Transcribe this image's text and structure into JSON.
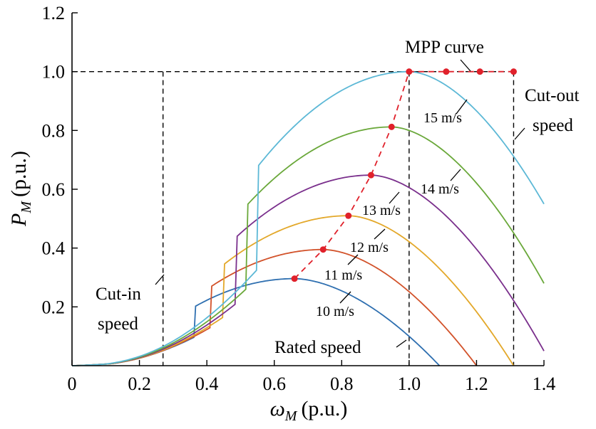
{
  "chart_data": {
    "type": "line",
    "xlabel": {
      "symbol": "ω",
      "subscript": "M",
      "unit": "(p.u.)"
    },
    "ylabel": {
      "symbol": "P",
      "subscript": "M",
      "unit": "(p.u.)"
    },
    "xlim": [
      0,
      1.4
    ],
    "ylim": [
      0,
      1.2
    ],
    "x_ticks": [
      0,
      0.2,
      0.4,
      0.6,
      0.8,
      1.0,
      1.2,
      1.4
    ],
    "x_tick_labels": [
      "0",
      "0.2",
      "0.4",
      "0.6",
      "0.8",
      "1.0",
      "1.2",
      "1.4"
    ],
    "y_ticks": [
      0.2,
      0.4,
      0.6,
      0.8,
      1.0,
      1.2
    ],
    "y_tick_labels": [
      "0.2",
      "0.4",
      "0.6",
      "0.8",
      "1.0",
      "1.2"
    ],
    "grid": false,
    "series": [
      {
        "name": "10 m/s",
        "color": "#2e6fb0",
        "peak": [
          0.66,
          0.296
        ],
        "x_end": 1.09
      },
      {
        "name": "11 m/s",
        "color": "#d2522a",
        "peak": [
          0.745,
          0.395
        ],
        "x_end": 1.2
      },
      {
        "name": "12 m/s",
        "color": "#e3a82a",
        "peak": [
          0.82,
          0.51
        ],
        "x_end": 1.31
      },
      {
        "name": "13 m/s",
        "color": "#7a2f8c",
        "peak": [
          0.887,
          0.648
        ],
        "x_end": 1.4,
        "y_end": 0.05
      },
      {
        "name": "14 m/s",
        "color": "#6aa83a",
        "peak": [
          0.948,
          0.812
        ],
        "x_end": 1.4,
        "y_end": 0.28
      },
      {
        "name": "15 m/s",
        "color": "#5cb8d6",
        "peak": [
          1.0,
          1.0
        ],
        "x_end": 1.4,
        "y_end": 0.55
      }
    ],
    "mpp_curve": {
      "name": "MPP curve",
      "color": "#e0212b",
      "points": [
        [
          0.66,
          0.296
        ],
        [
          0.745,
          0.395
        ],
        [
          0.82,
          0.51
        ],
        [
          0.887,
          0.648
        ],
        [
          0.948,
          0.812
        ],
        [
          1.0,
          1.0
        ],
        [
          1.11,
          1.0
        ],
        [
          1.21,
          1.0
        ],
        [
          1.31,
          1.0
        ]
      ]
    },
    "reference_lines": {
      "rated_power": 1.0,
      "cut_in_speed": 0.27,
      "rated_speed": 1.0,
      "cut_out_speed": 1.31
    },
    "annotations": {
      "cut_in": [
        "Cut-in",
        "speed"
      ],
      "rated": "Rated speed",
      "cut_out": [
        "Cut-out",
        "speed"
      ],
      "mpp": "MPP curve"
    }
  }
}
